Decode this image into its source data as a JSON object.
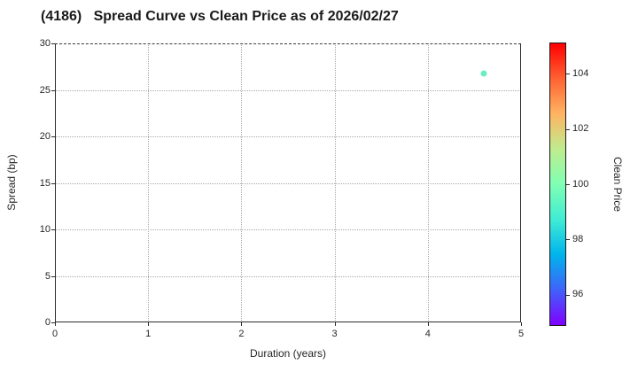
{
  "figure": {
    "background": "#ffffff"
  },
  "chart_data": {
    "type": "scatter",
    "title": "(4186)   Spread Curve vs Clean Price as of 2026/02/27",
    "xlabel": "Duration (years)",
    "ylabel": "Spread (bp)",
    "xlim": [
      0,
      5
    ],
    "ylim": [
      0,
      30
    ],
    "x_ticks": [
      0,
      1,
      2,
      3,
      4,
      5
    ],
    "y_ticks": [
      0,
      5,
      10,
      15,
      20,
      25,
      30
    ],
    "grid": true,
    "legend": "none",
    "points": [
      {
        "duration": 4.6,
        "spread_bp": 26.8,
        "clean_price": 99.5,
        "color": "#69eec3"
      }
    ],
    "colorbar": {
      "label": "Clean Price",
      "vmin": 94.9,
      "vmax": 105.1,
      "ticks": [
        96,
        98,
        100,
        102,
        104
      ],
      "colormap": "rainbow",
      "gradient_stops": [
        {
          "pos": 0.0,
          "color": "#8000ff"
        },
        {
          "pos": 0.125,
          "color": "#4062fa"
        },
        {
          "pos": 0.25,
          "color": "#00b4ec"
        },
        {
          "pos": 0.375,
          "color": "#40ecd4"
        },
        {
          "pos": 0.5,
          "color": "#80ffb4"
        },
        {
          "pos": 0.625,
          "color": "#bfec8e"
        },
        {
          "pos": 0.75,
          "color": "#ffb462"
        },
        {
          "pos": 0.875,
          "color": "#ff6232"
        },
        {
          "pos": 1.0,
          "color": "#ff0000"
        }
      ]
    }
  },
  "colors": {
    "spine": "#2b2b2b",
    "gridline": "#a9a9a9",
    "text": "#262626",
    "title": "#1a1a1a"
  }
}
